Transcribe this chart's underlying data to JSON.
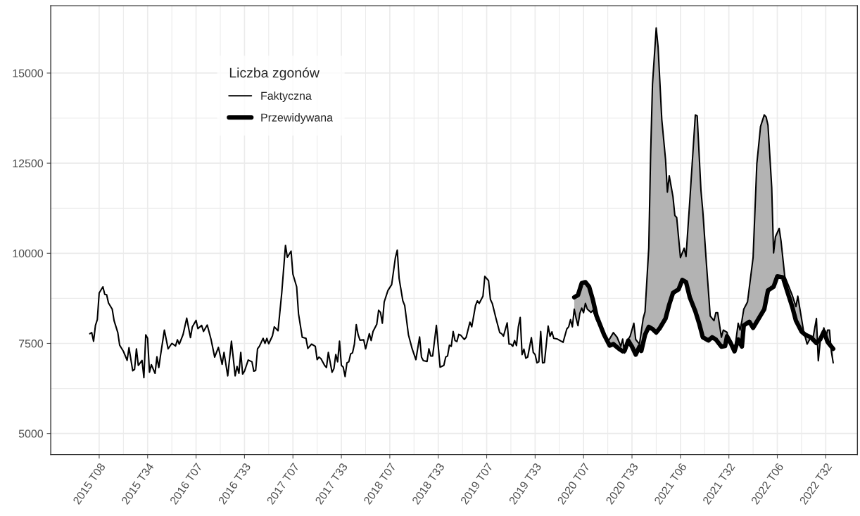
{
  "chart_data": {
    "type": "line",
    "legend_title": "Liczba zgonów",
    "ylim": [
      4415,
      16870
    ],
    "yticks": [
      5000,
      7500,
      10000,
      12500,
      15000
    ],
    "grid": true,
    "legend": "top left",
    "line_style": "solid",
    "marker": "none",
    "categories": [
      null,
      null,
      null,
      null,
      null,
      "2015 T08",
      null,
      null,
      null,
      null,
      null,
      null,
      null,
      null,
      null,
      null,
      null,
      null,
      null,
      null,
      null,
      null,
      null,
      null,
      null,
      null,
      null,
      null,
      null,
      null,
      null,
      "2015 T34",
      null,
      null,
      null,
      null,
      null,
      null,
      null,
      null,
      null,
      null,
      null,
      null,
      null,
      null,
      null,
      null,
      null,
      null,
      null,
      null,
      null,
      null,
      null,
      null,
      null,
      "2016 T07",
      null,
      null,
      null,
      null,
      null,
      null,
      null,
      null,
      null,
      null,
      null,
      null,
      null,
      null,
      null,
      null,
      null,
      null,
      null,
      null,
      null,
      null,
      null,
      null,
      null,
      "2016 T33",
      null,
      null,
      null,
      null,
      null,
      null,
      null,
      null,
      null,
      null,
      null,
      null,
      null,
      null,
      null,
      null,
      null,
      null,
      null,
      null,
      null,
      null,
      null,
      null,
      null,
      "2017 T07",
      null,
      null,
      null,
      null,
      null,
      null,
      null,
      null,
      null,
      null,
      null,
      null,
      null,
      null,
      null,
      null,
      null,
      null,
      null,
      null,
      null,
      null,
      null,
      null,
      null,
      "2017 T33",
      null,
      null,
      null,
      null,
      null,
      null,
      null,
      null,
      null,
      null,
      null,
      null,
      null,
      null,
      null,
      null,
      null,
      null,
      null,
      null,
      null,
      null,
      null,
      null,
      null,
      "2018 T07",
      null,
      null,
      null,
      null,
      null,
      null,
      null,
      null,
      null,
      null,
      null,
      null,
      null,
      null,
      null,
      null,
      null,
      null,
      null,
      null,
      null,
      null,
      null,
      null,
      null,
      "2018 T33",
      null,
      null,
      null,
      null,
      null,
      null,
      null,
      null,
      null,
      null,
      null,
      null,
      null,
      null,
      null,
      null,
      null,
      null,
      null,
      null,
      null,
      null,
      null,
      null,
      null,
      "2019 T07",
      null,
      null,
      null,
      null,
      null,
      null,
      null,
      null,
      null,
      null,
      null,
      null,
      null,
      null,
      null,
      null,
      null,
      null,
      null,
      null,
      null,
      null,
      null,
      null,
      null,
      "2019 T33",
      null,
      null,
      null,
      null,
      null,
      null,
      null,
      null,
      null,
      null,
      null,
      null,
      null,
      null,
      null,
      null,
      null,
      null,
      null,
      null,
      null,
      null,
      null,
      null,
      null,
      "2020 T07",
      null,
      null,
      null,
      null,
      null,
      null,
      null,
      null,
      null,
      null,
      null,
      null,
      null,
      null,
      null,
      null,
      null,
      null,
      null,
      null,
      null,
      null,
      null,
      null,
      null,
      "2020 T33",
      null,
      null,
      null,
      null,
      null,
      null,
      null,
      null,
      null,
      null,
      null,
      null,
      null,
      null,
      null,
      null,
      null,
      null,
      null,
      null,
      null,
      null,
      null,
      null,
      null,
      "2021 T06",
      null,
      null,
      null,
      null,
      null,
      null,
      null,
      null,
      null,
      null,
      null,
      null,
      null,
      null,
      null,
      null,
      null,
      null,
      null,
      null,
      null,
      null,
      null,
      null,
      null,
      "2021 T32",
      null,
      null,
      null,
      null,
      null,
      null,
      null,
      null,
      null,
      null,
      null,
      null,
      null,
      null,
      null,
      null,
      null,
      null,
      null,
      null,
      null,
      null,
      null,
      null,
      null,
      "2022 T06",
      null,
      null,
      null,
      null,
      null,
      null,
      null,
      null,
      null,
      null,
      null,
      null,
      null,
      null,
      null,
      null,
      null,
      null,
      null,
      null,
      null,
      null,
      null,
      null,
      null,
      "2022 T32",
      null,
      null,
      null,
      null
    ],
    "series": [
      {
        "name": "Faktyczna",
        "color": "#000000",
        "values": [
          7770,
          7800,
          7560,
          8000,
          8160,
          8900,
          null,
          9070,
          8860,
          8850,
          8620,
          null,
          8450,
          8130,
          null,
          7800,
          7450,
          null,
          7280,
          null,
          7030,
          7380,
          null,
          6740,
          6780,
          7350,
          6890,
          null,
          7030,
          6550,
          7740,
          7640,
          6700,
          6910,
          null,
          6670,
          7130,
          6830,
          7190,
          null,
          7870,
          null,
          7350,
          null,
          7500,
          null,
          7430,
          7600,
          7480,
          null,
          7740,
          null,
          8200,
          null,
          7660,
          7960,
          null,
          8140,
          7910,
          null,
          8000,
          7830,
          null,
          8010,
          null,
          7620,
          null,
          7120,
          null,
          7390,
          null,
          6920,
          7250,
          null,
          6600,
          null,
          7560,
          null,
          6600,
          6860,
          6670,
          7250,
          6650,
          6730,
          null,
          7040,
          null,
          6990,
          6730,
          6750,
          7350,
          7420,
          null,
          7640,
          7500,
          7640,
          7490,
          null,
          7710,
          7960,
          null,
          7850,
          null,
          8900,
          null,
          10220,
          9890,
          null,
          10060,
          9420,
          null,
          9070,
          8320,
          null,
          7670,
          null,
          7640,
          7360,
          null,
          7480,
          null,
          7420,
          7050,
          7120,
          7080,
          null,
          6890,
          6830,
          7250,
          null,
          6700,
          6800,
          7190,
          6990,
          7560,
          6890,
          6840,
          6580,
          6960,
          6990,
          7210,
          7240,
          7480,
          8020,
          7740,
          7590,
          null,
          7600,
          7350,
          null,
          7770,
          7580,
          7830,
          null,
          8030,
          8420,
          8360,
          8060,
          8650,
          null,
          8970,
          null,
          9130,
          null,
          9880,
          10090,
          9300,
          null,
          8680,
          8550,
          null,
          7740,
          null,
          7350,
          null,
          7050,
          null,
          7680,
          7120,
          7020,
          null,
          7000,
          7350,
          7150,
          7150,
          null,
          8000,
          null,
          6840,
          null,
          6890,
          7120,
          7150,
          7450,
          7420,
          7830,
          7580,
          7550,
          7750,
          7730,
          null,
          7610,
          7670,
          null,
          8090,
          7960,
          null,
          8550,
          8680,
          8610,
          null,
          8810,
          9360,
          null,
          9240,
          8720,
          8610,
          null,
          8190,
          null,
          7800,
          7770,
          7700,
          null,
          8070,
          7480,
          7480,
          7420,
          7580,
          7440,
          7960,
          8220,
          7190,
          7340,
          7090,
          7120,
          null,
          7660,
          7250,
          7190,
          6960,
          6990,
          7830,
          6960,
          6970,
          null,
          7980,
          7700,
          7820,
          7640,
          null,
          7620,
          null,
          null,
          7530,
          null,
          7900,
          7960,
          8160,
          7960,
          8450,
          8190,
          7990,
          8330,
          8480,
          8350,
          8610,
          8450,
          null,
          8360,
          8420,
          null,
          8150,
          null,
          7950,
          null,
          7700,
          null,
          7540,
          null,
          null,
          7800,
          null,
          7670,
          null,
          7420,
          7620,
          7230,
          7540,
          null,
          7700,
          null,
          8060,
          7610,
          null,
          7480,
          null,
          8190,
          8380,
          null,
          10150,
          12740,
          14690,
          null,
          16250,
          15730,
          null,
          13710,
          null,
          12610,
          11700,
          12150,
          null,
          11570,
          11050,
          10990,
          null,
          9880,
          null,
          10140,
          9910,
          null,
          11440,
          null,
          null,
          13840,
          13810,
          null,
          11760,
          11180,
          null,
          9680,
          null,
          8260,
          null,
          8130,
          8350,
          8350,
          null,
          7670,
          7870,
          null,
          7810,
          7510,
          null,
          7480,
          7280,
          null,
          8060,
          7870,
          8130,
          8450,
          null,
          8650,
          null,
          null,
          9880,
          null,
          12480,
          null,
          13520,
          null,
          13840,
          13780,
          13550,
          null,
          11830,
          10010,
          10460,
          null,
          10690,
          10340,
          null,
          9360,
          null,
          9100,
          null,
          8840,
          null,
          8520,
          8810,
          null,
          8190,
          7870,
          null,
          7480,
          null,
          7670,
          7610,
          null,
          8190,
          7020,
          7540,
          null,
          7930,
          7650,
          7870,
          7870,
          7280,
          6960
        ]
      },
      {
        "name": "Przewidywana",
        "color": "#000000",
        "values": [
          null,
          null,
          null,
          null,
          null,
          null,
          null,
          null,
          null,
          null,
          null,
          null,
          null,
          null,
          null,
          null,
          null,
          null,
          null,
          null,
          null,
          null,
          null,
          null,
          null,
          null,
          null,
          null,
          null,
          null,
          null,
          null,
          null,
          null,
          null,
          null,
          null,
          null,
          null,
          null,
          null,
          null,
          null,
          null,
          null,
          null,
          null,
          null,
          null,
          null,
          null,
          null,
          null,
          null,
          null,
          null,
          null,
          null,
          null,
          null,
          null,
          null,
          null,
          null,
          null,
          null,
          null,
          null,
          null,
          null,
          null,
          null,
          null,
          null,
          null,
          null,
          null,
          null,
          null,
          null,
          null,
          null,
          null,
          null,
          null,
          null,
          null,
          null,
          null,
          null,
          null,
          null,
          null,
          null,
          null,
          null,
          null,
          null,
          null,
          null,
          null,
          null,
          null,
          null,
          null,
          null,
          null,
          null,
          null,
          null,
          null,
          null,
          null,
          null,
          null,
          null,
          null,
          null,
          null,
          null,
          null,
          null,
          null,
          null,
          null,
          null,
          null,
          null,
          null,
          null,
          null,
          null,
          null,
          null,
          null,
          null,
          null,
          null,
          null,
          null,
          null,
          null,
          null,
          null,
          null,
          null,
          null,
          null,
          null,
          null,
          null,
          null,
          null,
          null,
          null,
          null,
          null,
          null,
          null,
          null,
          null,
          null,
          null,
          null,
          null,
          null,
          null,
          null,
          null,
          null,
          null,
          null,
          null,
          null,
          null,
          null,
          null,
          null,
          null,
          null,
          null,
          null,
          null,
          null,
          null,
          null,
          null,
          null,
          null,
          null,
          null,
          null,
          null,
          null,
          null,
          null,
          null,
          null,
          null,
          null,
          null,
          null,
          null,
          null,
          null,
          null,
          null,
          null,
          null,
          null,
          null,
          null,
          null,
          null,
          null,
          null,
          null,
          null,
          null,
          null,
          null,
          null,
          null,
          null,
          null,
          null,
          null,
          null,
          null,
          null,
          null,
          null,
          null,
          null,
          null,
          null,
          null,
          null,
          null,
          null,
          null,
          null,
          null,
          null,
          null,
          null,
          null,
          null,
          null,
          null,
          null,
          null,
          null,
          null,
          null,
          null,
          null,
          null,
          null,
          null,
          8780,
          null,
          8840,
          null,
          9170,
          null,
          9200,
          null,
          9070,
          null,
          8710,
          null,
          8260,
          null,
          8000,
          null,
          7740,
          null,
          null,
          7440,
          null,
          7480,
          null,
          null,
          7350,
          null,
          7280,
          7290,
          null,
          7580,
          null,
          7410,
          null,
          7190,
          null,
          7410,
          7290,
          null,
          7740,
          null,
          7960,
          null,
          7900,
          null,
          7800,
          null,
          7930,
          null,
          null,
          8190,
          null,
          8580,
          null,
          8900,
          null,
          null,
          9000,
          null,
          9260,
          null,
          9200,
          null,
          8780,
          null,
          null,
          8390,
          null,
          8060,
          null,
          7670,
          null,
          null,
          7580,
          null,
          7670,
          null,
          7610,
          null,
          null,
          7410,
          null,
          7430,
          7700,
          null,
          7510,
          null,
          7280,
          null,
          7610,
          null,
          7410,
          8000,
          null,
          null,
          8100,
          null,
          7930,
          null,
          null,
          8190,
          null,
          null,
          8450,
          null,
          8970,
          null,
          null,
          9070,
          null,
          9360,
          null,
          null,
          9330,
          null,
          9000,
          null,
          null,
          8520,
          null,
          8130,
          null,
          null,
          7830,
          null,
          7740,
          null,
          null,
          7670,
          null,
          null,
          7510,
          null,
          7610,
          null,
          7830,
          null,
          7540,
          null,
          null,
          7350
        ],
        "lower": [
          null,
          null,
          null,
          null,
          null,
          null,
          null,
          null,
          null,
          null,
          null,
          null,
          null,
          null,
          null,
          null,
          null,
          null,
          null,
          null,
          null,
          null,
          null,
          null,
          null,
          null,
          null,
          null,
          null,
          null,
          null,
          null,
          null,
          null,
          null,
          null,
          null,
          null,
          null,
          null,
          null,
          null,
          null,
          null,
          null,
          null,
          null,
          null,
          null,
          null,
          null,
          null,
          null,
          null,
          null,
          null,
          null,
          null,
          null,
          null,
          null,
          null,
          null,
          null,
          null,
          null,
          null,
          null,
          null,
          null,
          null,
          null,
          null,
          null,
          null,
          null,
          null,
          null,
          null,
          null,
          null,
          null,
          null,
          null,
          null,
          null,
          null,
          null,
          null,
          null,
          null,
          null,
          null,
          null,
          null,
          null,
          null,
          null,
          null,
          null,
          null,
          null,
          null,
          null,
          null,
          null,
          null,
          null,
          null,
          null,
          null,
          null,
          null,
          null,
          null,
          null,
          null,
          null,
          null,
          null,
          null,
          null,
          null,
          null,
          null,
          null,
          null,
          null,
          null,
          null,
          null,
          null,
          null,
          null,
          null,
          null,
          null,
          null,
          null,
          null,
          null,
          null,
          null,
          null,
          null,
          null,
          null,
          null,
          null,
          null,
          null,
          null,
          null,
          null,
          null,
          null,
          null,
          null,
          null,
          null,
          null,
          null,
          null,
          null,
          null,
          null,
          null,
          null,
          null,
          null,
          null,
          null,
          null,
          null,
          null,
          null,
          null,
          null,
          null,
          null,
          null,
          null,
          null,
          null,
          null,
          null,
          null,
          null,
          null,
          null,
          null,
          null,
          null,
          null,
          null,
          null,
          null,
          null,
          null,
          null,
          null,
          null,
          null,
          null,
          null,
          null,
          null,
          null,
          null,
          null,
          null,
          null,
          null,
          null,
          null,
          null,
          null,
          null,
          null,
          null,
          null,
          null,
          null,
          null,
          null,
          null,
          null,
          null,
          null,
          null,
          null,
          null,
          null,
          null,
          null,
          null,
          null,
          null,
          null,
          null,
          null,
          null,
          null,
          null,
          null,
          null,
          null,
          null,
          null,
          null,
          null,
          null,
          null,
          null,
          null,
          null,
          null,
          null,
          null,
          null,
          8780,
          8810,
          8840,
          9000,
          9170,
          9190,
          9200,
          9140,
          null,
          8890,
          8710,
          null,
          8260,
          null,
          8000,
          null,
          7740,
          null,
          7540,
          null,
          null,
          7480,
          null,
          7390,
          null,
          7310,
          7280,
          7290,
          7430,
          null,
          7500,
          null,
          7300,
          7190,
          null,
          7410,
          null,
          7510,
          7740,
          null,
          7960,
          7930,
          7900,
          null,
          7800,
          7860,
          null,
          7990,
          null,
          8190,
          8380,
          8580,
          null,
          8900,
          8930,
          8970,
          null,
          9130,
          null,
          9230,
          9200,
          null,
          8780,
          null,
          null,
          8390,
          8220,
          null,
          7860,
          7670,
          null,
          7610,
          null,
          7620,
          null,
          7640,
          7610,
          7540,
          null,
          7410,
          7420,
          null,
          7700,
          7600,
          null,
          7390,
          7280,
          null,
          7610,
          7510,
          7410,
          8000,
          null,
          8070,
          null,
          null,
          7930,
          null,
          8100,
          null,
          8280,
          null,
          8450,
          8710,
          8970,
          null,
          9040,
          9070,
          9210,
          null,
          9350,
          9340,
          null,
          9160,
          null,
          8840,
          null,
          8520,
          null,
          8130,
          8030,
          null,
          7830,
          7790,
          null,
          7710,
          null,
          7670,
          7620,
          null,
          7510,
          7560,
          7610,
          null,
          7830,
          7690,
          7540,
          7480,
          7410,
          7350
        ],
        "upper": [
          null,
          null,
          null,
          null,
          null,
          null,
          null,
          null,
          null,
          null,
          null,
          null,
          null,
          null,
          null,
          null,
          null,
          null,
          null,
          null,
          null,
          null,
          null,
          null,
          null,
          null,
          null,
          null,
          null,
          null,
          null,
          null,
          null,
          null,
          null,
          null,
          null,
          null,
          null,
          null,
          null,
          null,
          null,
          null,
          null,
          null,
          null,
          null,
          null,
          null,
          null,
          null,
          null,
          null,
          null,
          null,
          null,
          null,
          null,
          null,
          null,
          null,
          null,
          null,
          null,
          null,
          null,
          null,
          null,
          null,
          null,
          null,
          null,
          null,
          null,
          null,
          null,
          null,
          null,
          null,
          null,
          null,
          null,
          null,
          null,
          null,
          null,
          null,
          null,
          null,
          null,
          null,
          null,
          null,
          null,
          null,
          null,
          null,
          null,
          null,
          null,
          null,
          null,
          null,
          null,
          null,
          null,
          null,
          null,
          null,
          null,
          null,
          null,
          null,
          null,
          null,
          null,
          null,
          null,
          null,
          null,
          null,
          null,
          null,
          null,
          null,
          null,
          null,
          null,
          null,
          null,
          null,
          null,
          null,
          null,
          null,
          null,
          null,
          null,
          null,
          null,
          null,
          null,
          null,
          null,
          null,
          null,
          null,
          null,
          null,
          null,
          null,
          null,
          null,
          null,
          null,
          null,
          null,
          null,
          null,
          null,
          null,
          null,
          null,
          null,
          null,
          null,
          null,
          null,
          null,
          null,
          null,
          null,
          null,
          null,
          null,
          null,
          null,
          null,
          null,
          null,
          null,
          null,
          null,
          null,
          null,
          null,
          null,
          null,
          null,
          null,
          null,
          null,
          null,
          null,
          null,
          null,
          null,
          null,
          null,
          null,
          null,
          null,
          null,
          null,
          null,
          null,
          null,
          null,
          null,
          null,
          null,
          null,
          null,
          null,
          null,
          null,
          null,
          null,
          null,
          null,
          null,
          null,
          null,
          null,
          null,
          null,
          null,
          null,
          null,
          null,
          null,
          null,
          null,
          null,
          null,
          null,
          null,
          null,
          null,
          null,
          null,
          null,
          null,
          null,
          null,
          null,
          null,
          null,
          null,
          null,
          null,
          null,
          null,
          null,
          null,
          null,
          null,
          null,
          null,
          8450,
          8190,
          7990,
          8330,
          8480,
          8350,
          8610,
          8450,
          null,
          8360,
          8420,
          null,
          8150,
          null,
          7950,
          null,
          7700,
          null,
          7540,
          null,
          null,
          7800,
          null,
          7670,
          null,
          7420,
          7620,
          7230,
          7540,
          null,
          7700,
          null,
          8060,
          7610,
          null,
          7480,
          null,
          8190,
          8380,
          null,
          10150,
          12740,
          14690,
          null,
          16250,
          15730,
          null,
          13710,
          null,
          12610,
          11700,
          12150,
          null,
          11570,
          11050,
          10990,
          null,
          9880,
          null,
          10140,
          9910,
          null,
          11440,
          null,
          null,
          13840,
          13810,
          null,
          11760,
          11180,
          null,
          9680,
          null,
          8260,
          null,
          8130,
          8350,
          8350,
          null,
          7670,
          7870,
          null,
          7810,
          7510,
          null,
          7480,
          7280,
          null,
          8060,
          7870,
          8130,
          8450,
          null,
          8650,
          null,
          null,
          9880,
          null,
          12480,
          null,
          13520,
          null,
          13840,
          13780,
          13550,
          null,
          11830,
          10010,
          10460,
          null,
          10690,
          10340,
          null,
          9360,
          null,
          9100,
          null,
          8840,
          null,
          8520,
          8810,
          null,
          8190,
          7870,
          null,
          7480,
          null,
          7670,
          7610,
          null,
          8190,
          7020,
          7540,
          null,
          7930,
          7650,
          7870,
          7870,
          7280,
          6960
        ]
      }
    ]
  }
}
